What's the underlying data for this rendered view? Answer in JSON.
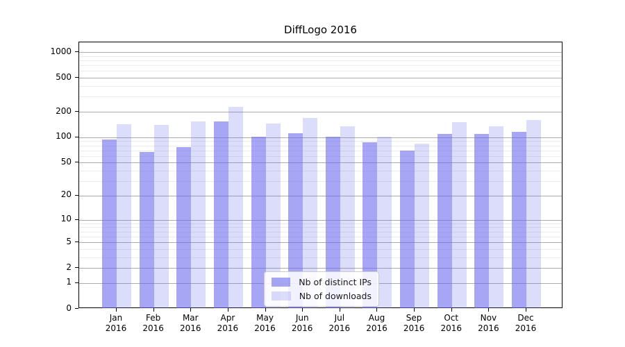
{
  "title": "DiffLogo 2016",
  "colors": {
    "bar_base": "#6666ee",
    "ips_bar": "rgba(102,102,238,0.58)",
    "downloads_bar": "rgba(102,102,238,0.23)",
    "major_grid": "#ababab",
    "minor_grid": "#ebebeb",
    "axis": "#000000",
    "background": "#ffffff"
  },
  "legend": {
    "items": [
      {
        "label": "Nb of distinct IPs",
        "series": "ips"
      },
      {
        "label": "Nb of downloads",
        "series": "downloads"
      }
    ]
  },
  "chart_data": {
    "type": "bar",
    "title": "DiffLogo 2016",
    "categories": [
      "Jan 2016",
      "Feb 2016",
      "Mar 2016",
      "Apr 2016",
      "May 2016",
      "Jun 2016",
      "Jul 2016",
      "Aug 2016",
      "Sep 2016",
      "Oct 2016",
      "Nov 2016",
      "Dec 2016"
    ],
    "series": [
      {
        "name": "Nb of distinct IPs",
        "values": [
          94,
          67,
          76,
          153,
          102,
          111,
          101,
          87,
          69,
          109,
          109,
          117
        ]
      },
      {
        "name": "Nb of downloads",
        "values": [
          142,
          139,
          154,
          227,
          145,
          168,
          134,
          101,
          84,
          150,
          136,
          160
        ]
      }
    ],
    "xlabel": "",
    "ylabel": "",
    "y_scale": "log1p",
    "ylim": [
      0,
      1300
    ],
    "y_ticks_major": [
      0,
      1,
      2,
      5,
      10,
      20,
      50,
      100,
      200,
      500,
      1000
    ],
    "y_ticks_minor": [
      3,
      4,
      6,
      7,
      8,
      9,
      30,
      40,
      60,
      70,
      80,
      90,
      300,
      400,
      600,
      700,
      800,
      900
    ],
    "grid": "both",
    "legend_position": "lower center"
  }
}
